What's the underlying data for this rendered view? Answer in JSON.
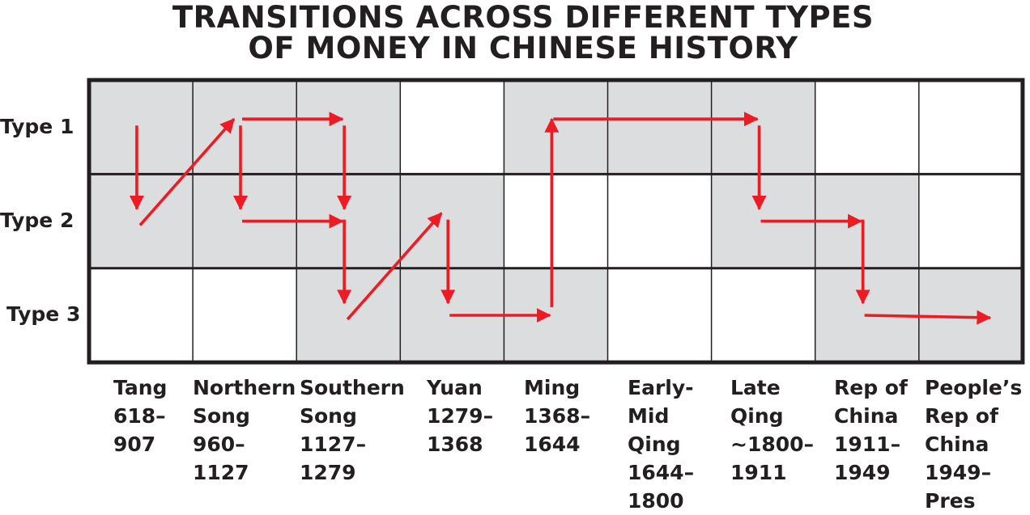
{
  "title": {
    "line1": "TRANSITIONS ACROSS DIFFERENT TYPES",
    "line2": "OF MONEY IN CHINESE HISTORY"
  },
  "rows": [
    "Type 1",
    "Type 2",
    "Type 3"
  ],
  "periods": [
    {
      "lines": [
        "Tang",
        "618–",
        "907"
      ],
      "active": [
        1,
        2
      ]
    },
    {
      "lines": [
        "Northern",
        "Song",
        "960–",
        "1127"
      ],
      "active": [
        1,
        2
      ]
    },
    {
      "lines": [
        "Southern",
        "Song",
        "1127–",
        "1279"
      ],
      "active": [
        1,
        2,
        3
      ]
    },
    {
      "lines": [
        "Yuan",
        "1279–",
        "1368"
      ],
      "active": [
        2,
        3
      ]
    },
    {
      "lines": [
        "Ming",
        "1368–",
        "1644"
      ],
      "active": [
        1,
        3
      ]
    },
    {
      "lines": [
        "Early-",
        "Mid",
        "Qing",
        "1644–",
        "1800"
      ],
      "active": [
        1
      ]
    },
    {
      "lines": [
        "Late",
        "Qing",
        "~1800–",
        "1911"
      ],
      "active": [
        1,
        2
      ]
    },
    {
      "lines": [
        "Rep of",
        "China",
        "1911–",
        "1949"
      ],
      "active": [
        2,
        3
      ]
    },
    {
      "lines": [
        "People’s",
        "Rep of",
        "China",
        "1949–",
        "Pres"
      ],
      "active": [
        3
      ]
    }
  ],
  "transitions": [
    {
      "from_period": 1,
      "from_type": 1,
      "to_period": 1,
      "to_type": 2
    },
    {
      "from_period": 1,
      "from_type": 2,
      "to_period": 2,
      "to_type": 1
    },
    {
      "from_period": 2,
      "from_type": 1,
      "to_period": 3,
      "to_type": 1
    },
    {
      "from_period": 2,
      "from_type": 1,
      "to_period": 2,
      "to_type": 2
    },
    {
      "from_period": 2,
      "from_type": 2,
      "to_period": 3,
      "to_type": 2
    },
    {
      "from_period": 3,
      "from_type": 1,
      "to_period": 3,
      "to_type": 2
    },
    {
      "from_period": 3,
      "from_type": 2,
      "to_period": 3,
      "to_type": 3
    },
    {
      "from_period": 3,
      "from_type": 3,
      "to_period": 4,
      "to_type": 2
    },
    {
      "from_period": 4,
      "from_type": 2,
      "to_period": 4,
      "to_type": 3
    },
    {
      "from_period": 4,
      "from_type": 3,
      "to_period": 5,
      "to_type": 3
    },
    {
      "from_period": 5,
      "from_type": 3,
      "to_period": 5,
      "to_type": 1
    },
    {
      "from_period": 5,
      "from_type": 1,
      "to_period": 7,
      "to_type": 1
    },
    {
      "from_period": 7,
      "from_type": 1,
      "to_period": 7,
      "to_type": 2
    },
    {
      "from_period": 7,
      "from_type": 2,
      "to_period": 8,
      "to_type": 2
    },
    {
      "from_period": 8,
      "from_type": 2,
      "to_period": 8,
      "to_type": 3
    },
    {
      "from_period": 8,
      "from_type": 3,
      "to_period": 9,
      "to_type": 3
    }
  ],
  "colors": {
    "active_cell": "#dcdddf",
    "inactive_cell": "#ffffff",
    "grid": "#231f20",
    "arrow": "#ed1c24",
    "text": "#231f20"
  }
}
